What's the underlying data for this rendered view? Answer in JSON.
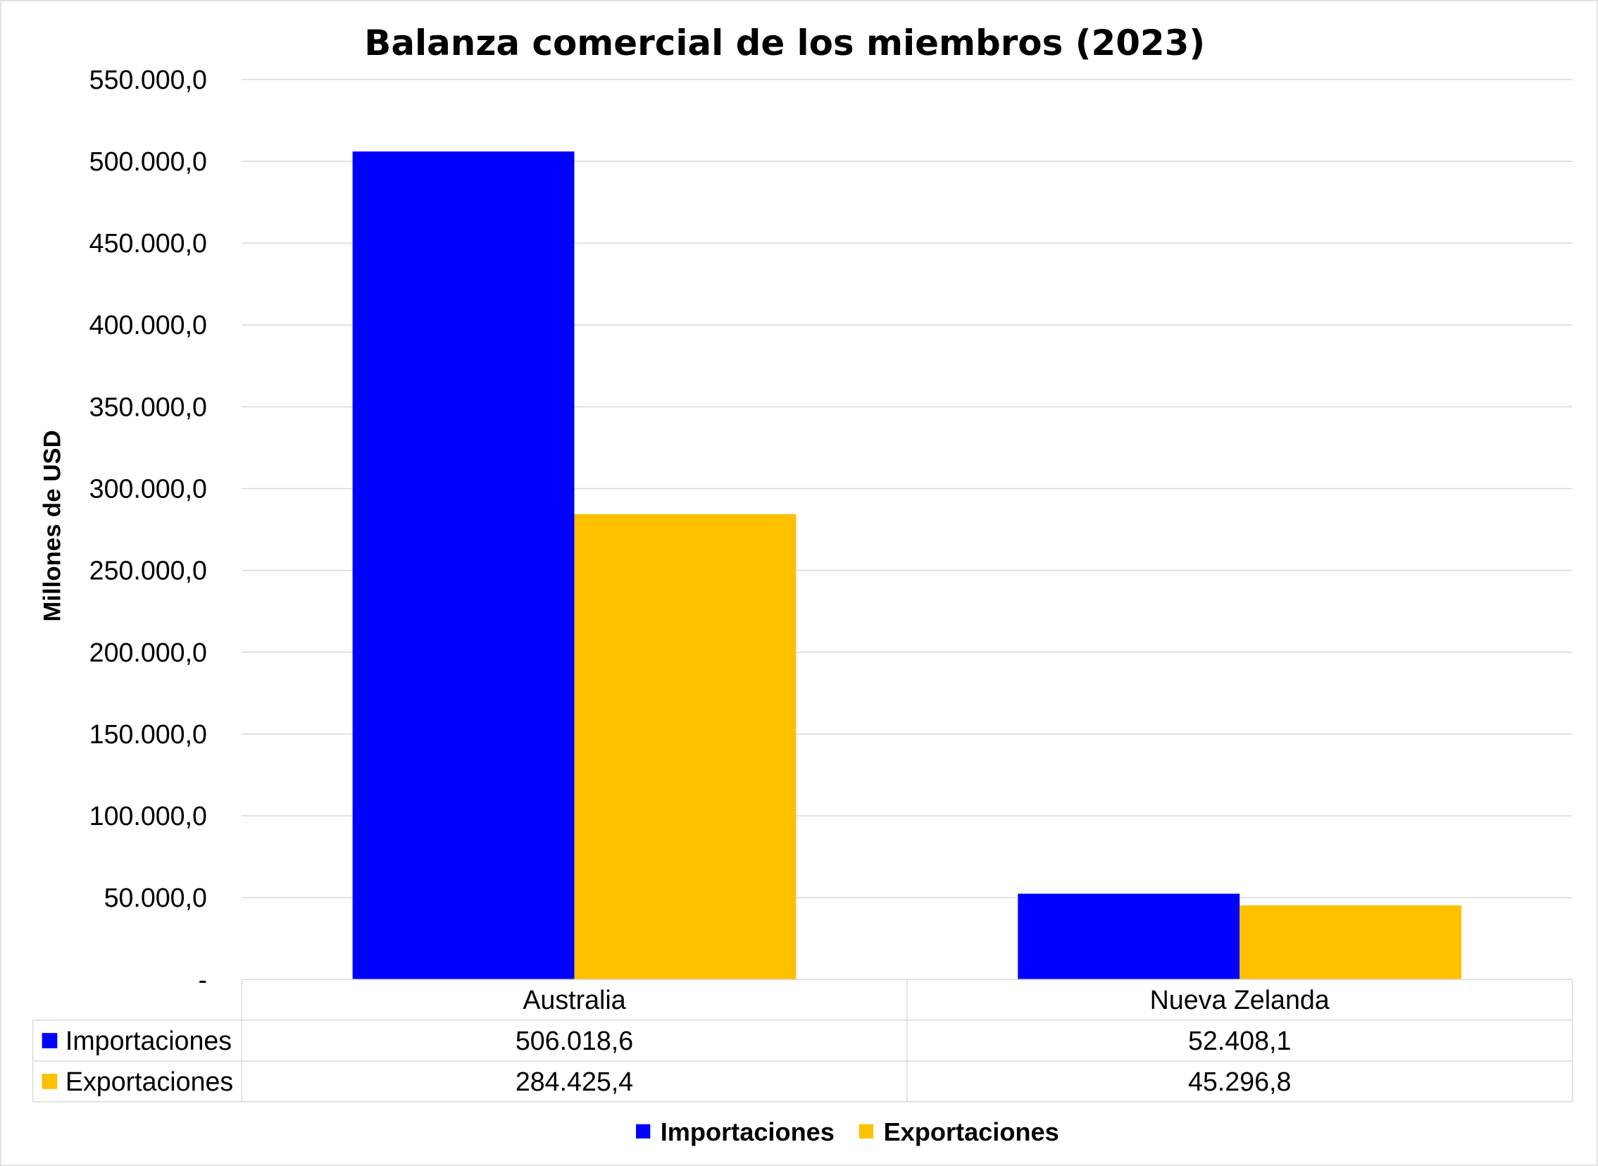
{
  "chart_data": {
    "type": "bar",
    "title": "Balanza comercial de los miembros (2023)",
    "ylabel": "Millones de USD",
    "categories": [
      "Australia",
      "Nueva Zelanda"
    ],
    "series": [
      {
        "name": "Importaciones",
        "color": "#0000FF",
        "values": [
          506018.6,
          52408.1
        ],
        "labels": [
          "506.018,6",
          "52.408,1"
        ]
      },
      {
        "name": "Exportaciones",
        "color": "#FFC000",
        "values": [
          284425.4,
          45296.8
        ],
        "labels": [
          "284.425,4",
          "45.296,8"
        ]
      }
    ],
    "ylim": [
      0,
      550000
    ],
    "yticks": [
      0,
      50000,
      100000,
      150000,
      200000,
      250000,
      300000,
      350000,
      400000,
      450000,
      500000,
      550000
    ],
    "ytick_labels": [
      "-",
      "50.000,0",
      "100.000,0",
      "150.000,0",
      "200.000,0",
      "250.000,0",
      "300.000,0",
      "350.000,0",
      "400.000,0",
      "450.000,0",
      "500.000,0",
      "550.000,0"
    ],
    "grid": true,
    "legend": "bottom",
    "data_table": true
  }
}
